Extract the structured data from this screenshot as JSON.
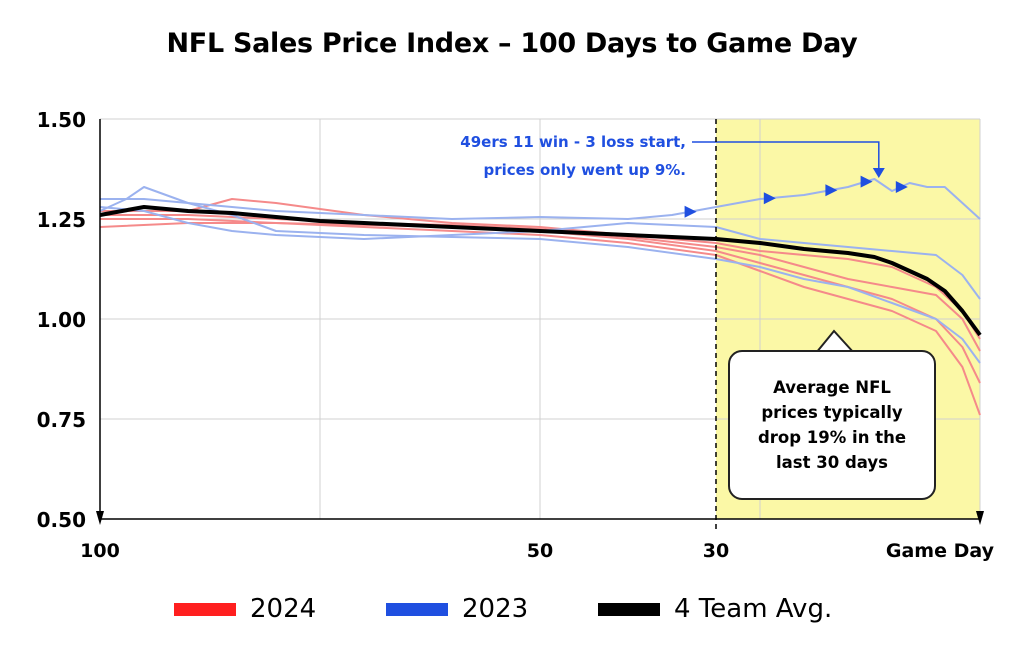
{
  "title": "NFL Sales Price Index – 100 Days to Game Day",
  "colors": {
    "red": "#ff1f1f",
    "red_light": "#f58a8a",
    "blue": "#1f4fe0",
    "blue_light": "#9bb2ef",
    "avg": "#000000",
    "highlight": "#fbf8a6"
  },
  "chart_data": {
    "type": "line",
    "title": "NFL Sales Price Index – 100 Days to Game Day",
    "xlabel": "",
    "ylabel": "",
    "x_ticks": [
      {
        "value": 100,
        "label": "100"
      },
      {
        "value": 50,
        "label": "50"
      },
      {
        "value": 30,
        "label": "30"
      },
      {
        "value": 0,
        "label": "Game Day"
      }
    ],
    "y_ticks": [
      "0.50",
      "0.75",
      "1.00",
      "1.25",
      "1.50"
    ],
    "ylim": [
      0.5,
      1.5
    ],
    "xlim": [
      100,
      0
    ],
    "grid": true,
    "highlight_region": {
      "from": 30,
      "to": 0
    },
    "series": [
      {
        "name": "4 Team Avg.",
        "group": "avg",
        "color": "#000000",
        "x": [
          100,
          95,
          90,
          85,
          80,
          75,
          70,
          65,
          60,
          55,
          50,
          45,
          40,
          35,
          30,
          25,
          20,
          15,
          12,
          10,
          8,
          6,
          4,
          2,
          0
        ],
        "y": [
          1.26,
          1.28,
          1.27,
          1.265,
          1.255,
          1.245,
          1.24,
          1.235,
          1.23,
          1.225,
          1.22,
          1.215,
          1.21,
          1.205,
          1.2,
          1.19,
          1.175,
          1.165,
          1.155,
          1.14,
          1.12,
          1.1,
          1.07,
          1.02,
          0.96
        ]
      },
      {
        "name": "",
        "group": "2024",
        "color": "#f58a8a",
        "x": [
          100,
          90,
          80,
          70,
          60,
          50,
          40,
          30,
          25,
          20,
          15,
          10,
          5,
          2,
          0
        ],
        "y": [
          1.25,
          1.25,
          1.24,
          1.235,
          1.23,
          1.22,
          1.2,
          1.17,
          1.14,
          1.11,
          1.08,
          1.05,
          1.0,
          0.93,
          0.84
        ]
      },
      {
        "name": "",
        "group": "2024",
        "color": "#f58a8a",
        "x": [
          100,
          90,
          80,
          70,
          60,
          50,
          40,
          30,
          25,
          20,
          15,
          10,
          5,
          2,
          0
        ],
        "y": [
          1.23,
          1.24,
          1.24,
          1.23,
          1.22,
          1.21,
          1.19,
          1.16,
          1.12,
          1.08,
          1.05,
          1.02,
          0.97,
          0.88,
          0.76
        ]
      },
      {
        "name": "",
        "group": "2024",
        "color": "#f58a8a",
        "x": [
          100,
          90,
          85,
          80,
          70,
          60,
          50,
          40,
          30,
          25,
          20,
          15,
          10,
          5,
          2,
          0
        ],
        "y": [
          1.27,
          1.27,
          1.3,
          1.29,
          1.26,
          1.24,
          1.23,
          1.21,
          1.19,
          1.17,
          1.16,
          1.15,
          1.13,
          1.08,
          1.02,
          0.95
        ]
      },
      {
        "name": "",
        "group": "2024",
        "color": "#f58a8a",
        "x": [
          100,
          90,
          80,
          70,
          60,
          50,
          40,
          30,
          25,
          20,
          15,
          10,
          5,
          2,
          0
        ],
        "y": [
          1.26,
          1.26,
          1.25,
          1.24,
          1.235,
          1.225,
          1.205,
          1.18,
          1.16,
          1.13,
          1.1,
          1.08,
          1.06,
          1.0,
          0.92
        ]
      },
      {
        "name": "",
        "group": "2023",
        "color": "#9bb2ef",
        "x": [
          100,
          95,
          90,
          85,
          80,
          70,
          60,
          50,
          40,
          35,
          30,
          25,
          20,
          15,
          12,
          10,
          8,
          6,
          4,
          2,
          0
        ],
        "y": [
          1.3,
          1.3,
          1.29,
          1.28,
          1.27,
          1.26,
          1.25,
          1.255,
          1.25,
          1.26,
          1.28,
          1.3,
          1.31,
          1.33,
          1.35,
          1.32,
          1.34,
          1.33,
          1.33,
          1.29,
          1.25
        ]
      },
      {
        "name": "",
        "group": "2023",
        "color": "#9bb2ef",
        "x": [
          100,
          97,
          95,
          90,
          85,
          80,
          70,
          60,
          50,
          40,
          30,
          25,
          20,
          15,
          10,
          5,
          2,
          0
        ],
        "y": [
          1.27,
          1.3,
          1.33,
          1.29,
          1.26,
          1.22,
          1.21,
          1.205,
          1.2,
          1.18,
          1.15,
          1.13,
          1.1,
          1.08,
          1.04,
          1.0,
          0.95,
          0.89
        ]
      },
      {
        "name": "",
        "group": "2023",
        "color": "#9bb2ef",
        "x": [
          100,
          95,
          90,
          85,
          80,
          70,
          60,
          50,
          40,
          30,
          25,
          20,
          15,
          10,
          5,
          2,
          0
        ],
        "y": [
          1.28,
          1.27,
          1.24,
          1.22,
          1.21,
          1.2,
          1.21,
          1.22,
          1.24,
          1.23,
          1.2,
          1.19,
          1.18,
          1.17,
          1.16,
          1.11,
          1.05
        ]
      }
    ],
    "legend": [
      {
        "label": "2024",
        "color": "#ff1f1f"
      },
      {
        "label": "2023",
        "color": "#1f4fe0"
      },
      {
        "label": "4 Team Avg.",
        "color": "#000000"
      }
    ],
    "legend_position": "bottom",
    "annotations": [
      {
        "text_lines": [
          "49ers 11 win - 3 loss start,",
          "prices only went up 9%."
        ],
        "color": "#1f4fe0"
      },
      {
        "text_lines": [
          "Average NFL",
          "prices typically",
          "drop 19% in the",
          "last 30 days"
        ],
        "color": "#000000"
      }
    ],
    "arrow_markers_x": [
      33,
      24,
      17,
      13,
      9
    ]
  }
}
